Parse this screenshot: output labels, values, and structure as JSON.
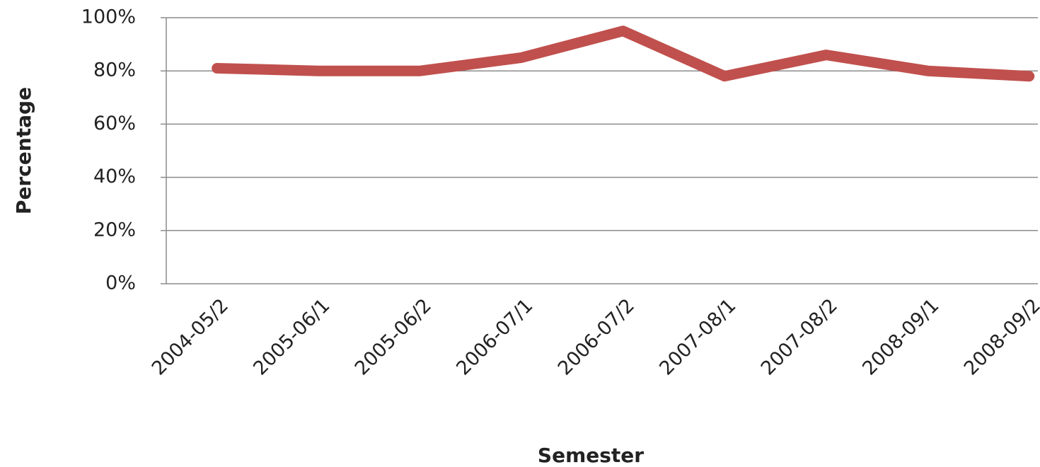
{
  "chart_data": {
    "type": "line",
    "x_label": "Semester",
    "y_label": "Percentage",
    "categories": [
      "2004-05/2",
      "2005-06/1",
      "2005-06/2",
      "2006-07/1",
      "2006-07/2",
      "2007-08/1",
      "2007-08/2",
      "2008-09/1",
      "2008-09/2"
    ],
    "series": [
      {
        "name": "Percentage",
        "color": "#c0504d",
        "values": [
          81,
          80,
          80,
          85,
          95,
          78,
          86,
          80,
          78
        ]
      }
    ],
    "ylim": [
      0,
      100
    ],
    "yticks": [
      {
        "value": 0,
        "label": "0%"
      },
      {
        "value": 20,
        "label": "20%"
      },
      {
        "value": 40,
        "label": "40%"
      },
      {
        "value": 60,
        "label": "60%"
      },
      {
        "value": 80,
        "label": "80%"
      },
      {
        "value": 100,
        "label": "100%"
      }
    ],
    "grid": true
  }
}
